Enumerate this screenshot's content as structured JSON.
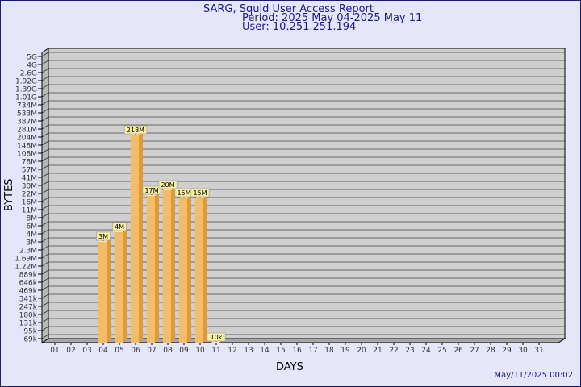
{
  "header": {
    "title": "SARG, Squid User Access Report",
    "period": "Period: 2025 May 04-2025 May 11",
    "user": "User: 10.251.251.194"
  },
  "footer": {
    "timestamp": "May/11/2025 00:02"
  },
  "colors": {
    "background": "#e6e6fa",
    "plot_background": "#cfcfcf",
    "bar_front": "#f6bb66",
    "bar_side": "#dc9a38",
    "bar_top": "#fde6b4",
    "label_box": "#f8f0a0",
    "title_text": "#1a1a8c"
  },
  "chart_data": {
    "type": "bar",
    "title": "SARG, Squid User Access Report",
    "xlabel": "DAYS",
    "ylabel": "BYTES",
    "categories": [
      "01",
      "02",
      "03",
      "04",
      "05",
      "06",
      "07",
      "08",
      "09",
      "10",
      "11",
      "12",
      "13",
      "14",
      "15",
      "16",
      "17",
      "18",
      "19",
      "20",
      "21",
      "22",
      "23",
      "24",
      "25",
      "26",
      "27",
      "28",
      "29",
      "30",
      "31"
    ],
    "y_ticks": [
      "69k",
      "95k",
      "131k",
      "180k",
      "247k",
      "341k",
      "469k",
      "646k",
      "889k",
      "1.22M",
      "1.69M",
      "2.3M",
      "3M",
      "4M",
      "6M",
      "8M",
      "11M",
      "16M",
      "22M",
      "30M",
      "41M",
      "57M",
      "78M",
      "108M",
      "148M",
      "204M",
      "281M",
      "387M",
      "533M",
      "734M",
      "1.01G",
      "1.39G",
      "1.92G",
      "2.6G",
      "4G",
      "5G"
    ],
    "bars": [
      {
        "day": "04",
        "label": "3M",
        "level": 12.0
      },
      {
        "day": "05",
        "label": "4M",
        "level": 13.2
      },
      {
        "day": "06",
        "label": "218M",
        "level": 25.2
      },
      {
        "day": "07",
        "label": "17M",
        "level": 17.7
      },
      {
        "day": "08",
        "label": "20M",
        "level": 18.4
      },
      {
        "day": "09",
        "label": "15M",
        "level": 17.4
      },
      {
        "day": "10",
        "label": "15M",
        "level": 17.4
      },
      {
        "day": "11",
        "label": "10k",
        "level": -2.3
      }
    ],
    "y_scale": "log",
    "grid": true
  }
}
